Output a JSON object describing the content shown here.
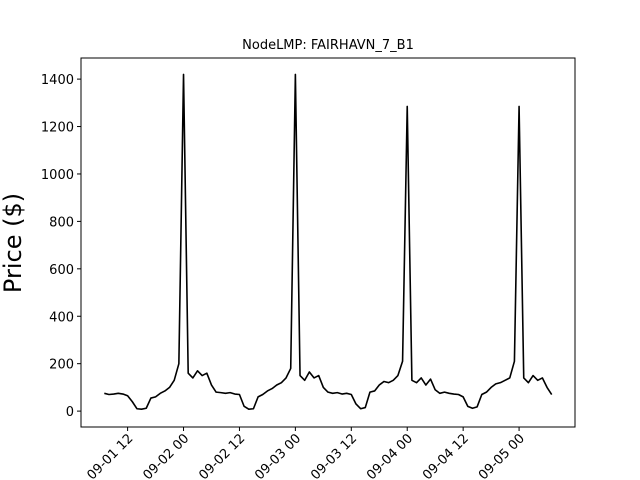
{
  "chart_data": {
    "type": "line",
    "title": "NodeLMP: FAIRHAVN_7_B1",
    "y_label": "Price ($)",
    "x": [
      "09-01 07",
      "09-01 08",
      "09-01 09",
      "09-01 10",
      "09-01 11",
      "09-01 12",
      "09-01 13",
      "09-01 14",
      "09-01 15",
      "09-01 16",
      "09-01 17",
      "09-01 18",
      "09-01 19",
      "09-01 20",
      "09-01 21",
      "09-01 22",
      "09-01 23",
      "09-02 00",
      "09-02 01",
      "09-02 02",
      "09-02 03",
      "09-02 04",
      "09-02 05",
      "09-02 06",
      "09-02 07",
      "09-02 08",
      "09-02 09",
      "09-02 10",
      "09-02 11",
      "09-02 12",
      "09-02 13",
      "09-02 14",
      "09-02 15",
      "09-02 16",
      "09-02 17",
      "09-02 18",
      "09-02 19",
      "09-02 20",
      "09-02 21",
      "09-02 22",
      "09-02 23",
      "09-03 00",
      "09-03 01",
      "09-03 02",
      "09-03 03",
      "09-03 04",
      "09-03 05",
      "09-03 06",
      "09-03 07",
      "09-03 08",
      "09-03 09",
      "09-03 10",
      "09-03 11",
      "09-03 12",
      "09-03 13",
      "09-03 14",
      "09-03 15",
      "09-03 16",
      "09-03 17",
      "09-03 18",
      "09-03 19",
      "09-03 20",
      "09-03 21",
      "09-03 22",
      "09-03 23",
      "09-04 00",
      "09-04 01",
      "09-04 02",
      "09-04 03",
      "09-04 04",
      "09-04 05",
      "09-04 06",
      "09-04 07",
      "09-04 08",
      "09-04 09",
      "09-04 10",
      "09-04 11",
      "09-04 12",
      "09-04 13",
      "09-04 14",
      "09-04 15",
      "09-04 16",
      "09-04 17",
      "09-04 18",
      "09-04 19",
      "09-04 20",
      "09-04 21",
      "09-04 22",
      "09-04 23",
      "09-05 00",
      "09-05 01",
      "09-05 02",
      "09-05 03",
      "09-05 04",
      "09-05 05",
      "09-05 06",
      "09-05 07"
    ],
    "series": [
      {
        "color": "#000000",
        "values": [
          75,
          70,
          72,
          75,
          72,
          65,
          40,
          10,
          8,
          12,
          55,
          60,
          75,
          85,
          100,
          130,
          200,
          1420,
          160,
          140,
          170,
          150,
          160,
          110,
          80,
          78,
          75,
          78,
          72,
          70,
          20,
          8,
          10,
          60,
          70,
          85,
          95,
          110,
          120,
          140,
          180,
          1420,
          150,
          130,
          165,
          140,
          150,
          100,
          80,
          75,
          78,
          72,
          75,
          70,
          30,
          10,
          15,
          80,
          85,
          110,
          125,
          120,
          130,
          150,
          210,
          1285,
          130,
          120,
          140,
          110,
          135,
          90,
          75,
          80,
          75,
          72,
          70,
          60,
          20,
          12,
          18,
          70,
          80,
          100,
          115,
          120,
          130,
          140,
          210,
          1285,
          140,
          120,
          150,
          130,
          140,
          100,
          70
        ]
      }
    ],
    "xlim": [
      "09-01 02",
      "09-05 12"
    ],
    "xticks": [
      "09-01 12",
      "09-02 00",
      "09-02 12",
      "09-03 00",
      "09-03 12",
      "09-04 00",
      "09-04 12",
      "09-05 00"
    ],
    "ylim": [
      -67,
      1489
    ],
    "yticks": [
      0,
      200,
      400,
      600,
      800,
      1000,
      1200,
      1400
    ]
  }
}
